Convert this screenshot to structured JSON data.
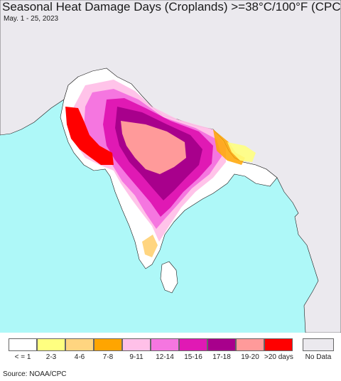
{
  "title": "Seasonal Heat Damage Days (Croplands) >=38°C/100°F (CPC)",
  "subtitle": "May. 1 - 25, 2023",
  "source": "Source: NOAA/CPC",
  "colors": {
    "ocean": "#aef8f8",
    "land_outside": "#ebe9ee",
    "land_india": "#ffffff",
    "border": "#1a1a1a"
  },
  "legend": [
    {
      "label": "< = 1",
      "color": "#ffffff"
    },
    {
      "label": "2-3",
      "color": "#ffff80"
    },
    {
      "label": "4-6",
      "color": "#ffd580"
    },
    {
      "label": "7-8",
      "color": "#ffa500"
    },
    {
      "label": "9-11",
      "color": "#ffc0e8"
    },
    {
      "label": "12-14",
      "color": "#f576e0"
    },
    {
      "label": "15-16",
      "color": "#e019b4"
    },
    {
      "label": "17-18",
      "color": "#a8008c"
    },
    {
      "label": "19-20",
      "color": "#ff9a9a"
    },
    {
      "label": ">20 days",
      "color": "#ff0000"
    }
  ],
  "no_data": {
    "label": "No Data",
    "color": "#ebe9ee"
  }
}
